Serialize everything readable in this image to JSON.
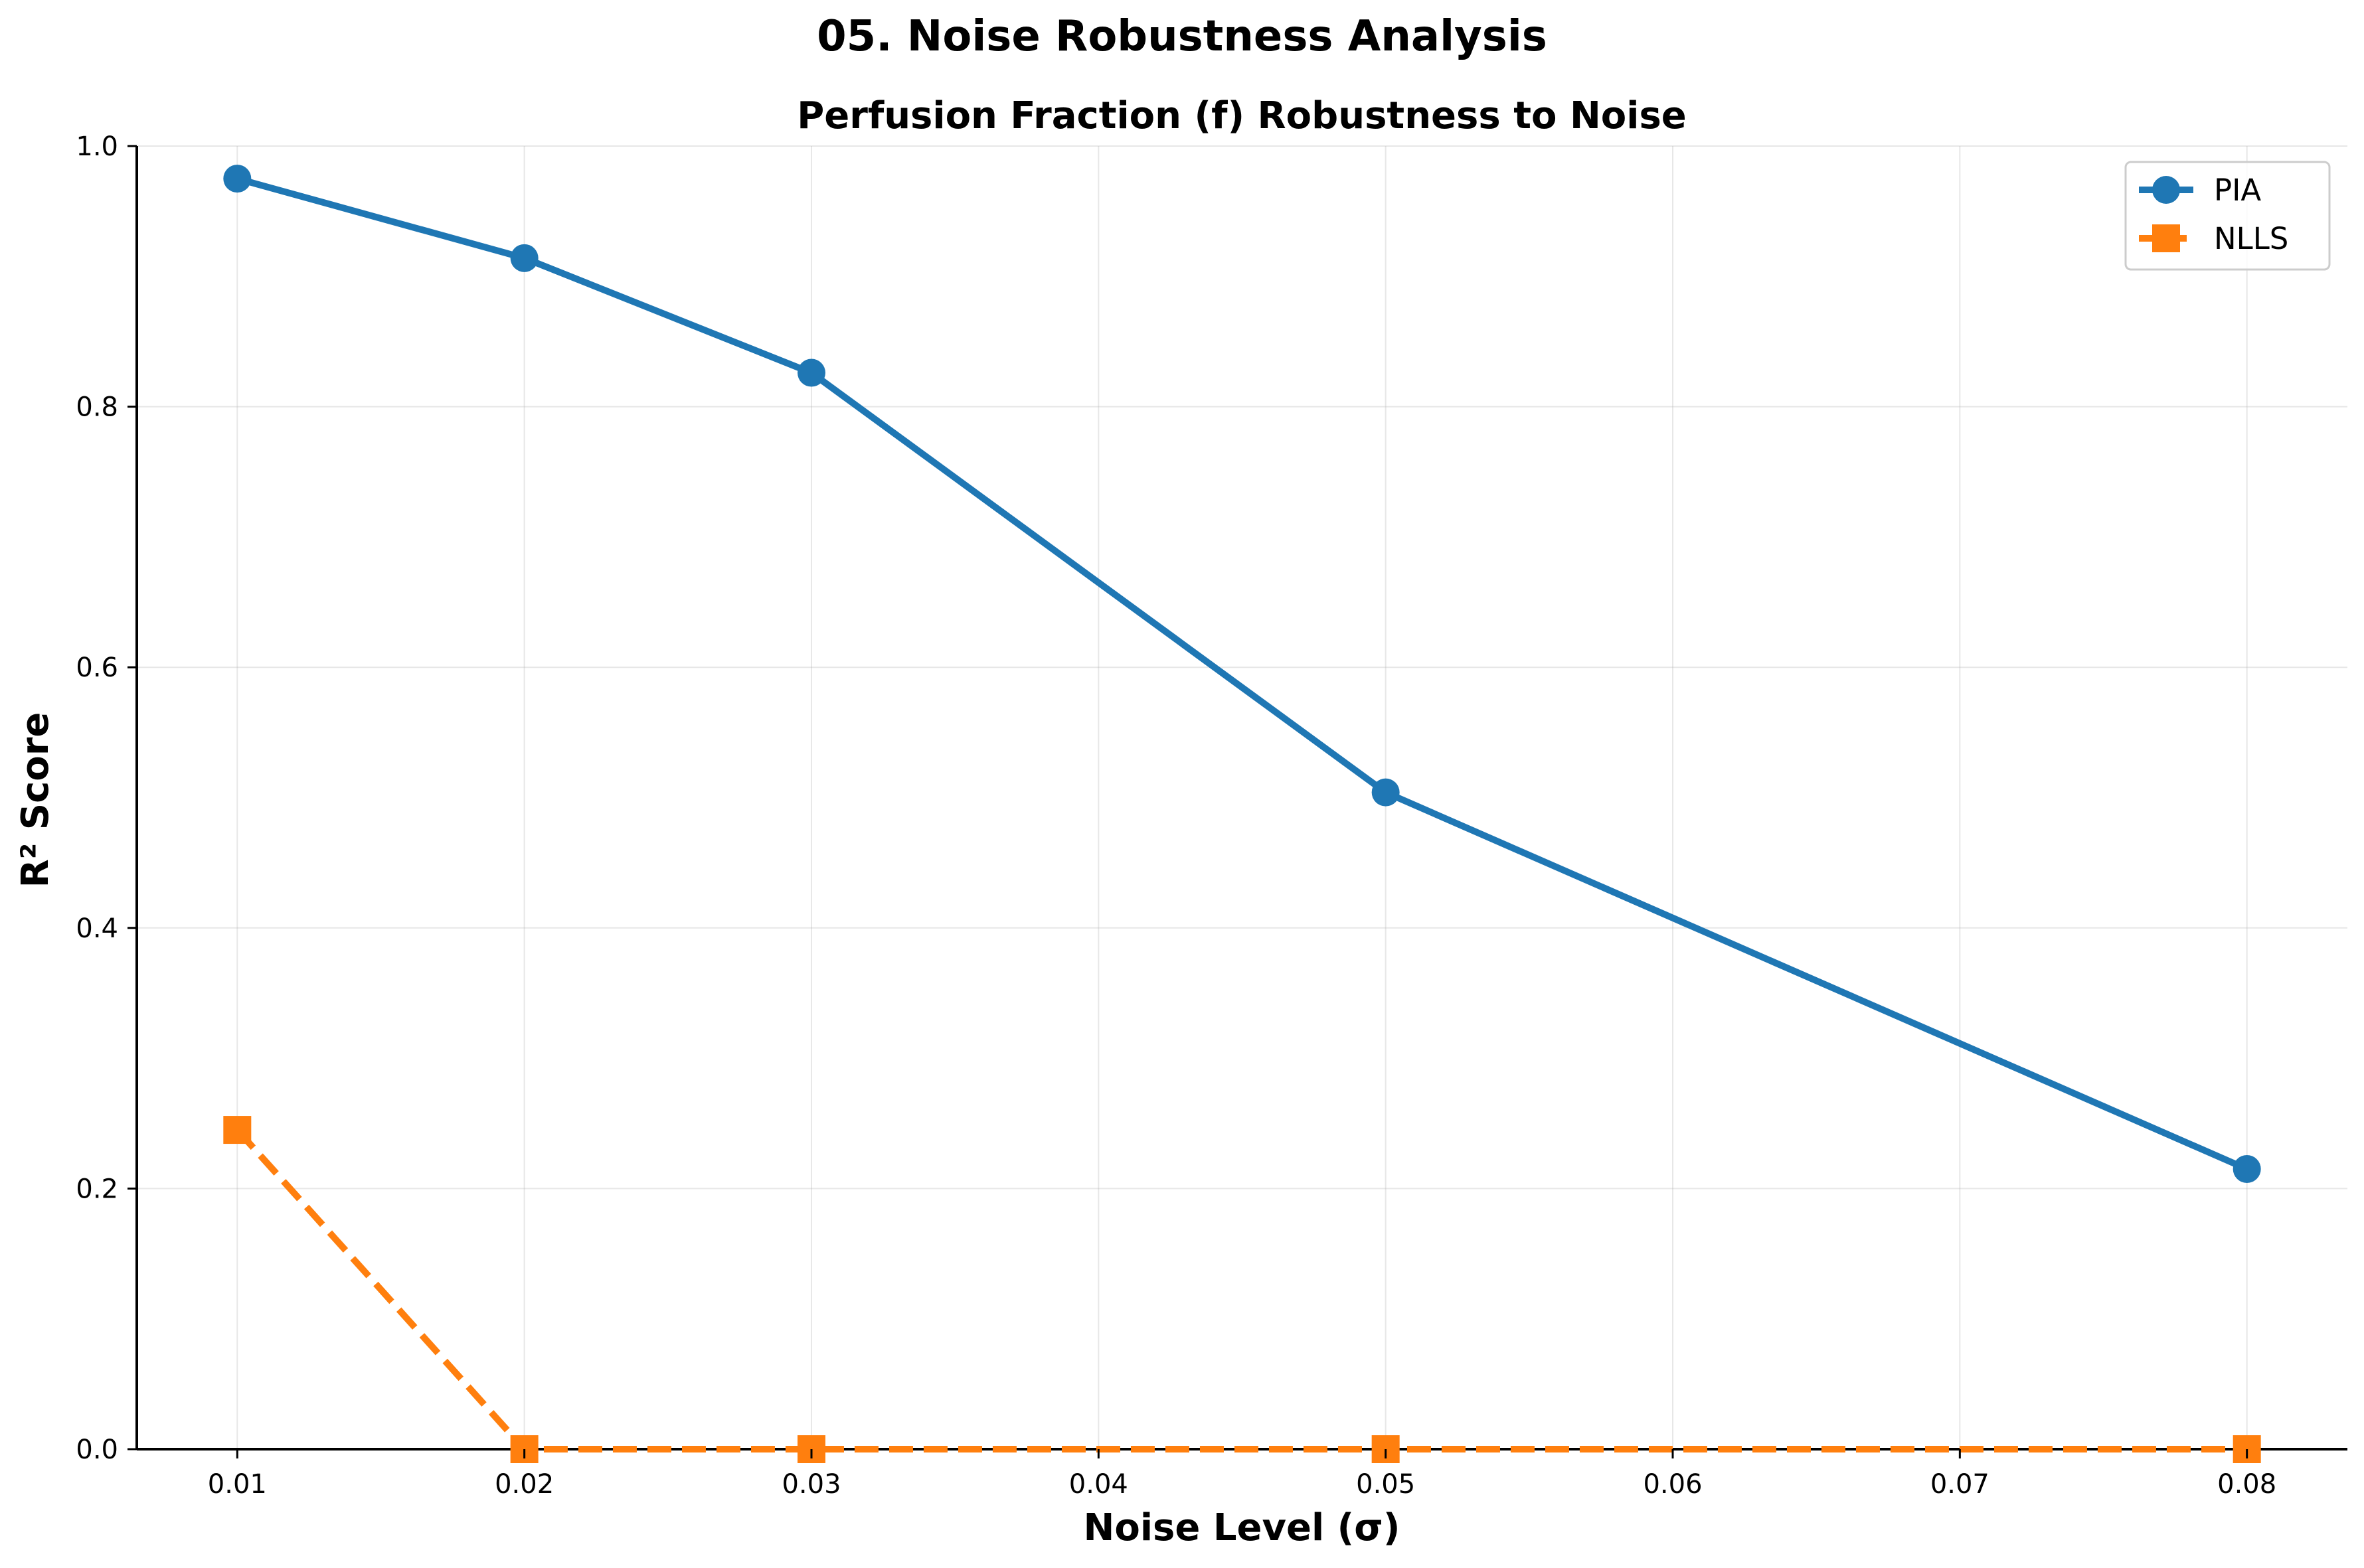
{
  "chart_data": {
    "type": "line",
    "suptitle": "05. Noise Robustness Analysis",
    "title": "Perfusion Fraction (f) Robustness to Noise",
    "xlabel": "Noise Level (σ)",
    "ylabel": "R² Score",
    "xlim": [
      0.0065,
      0.0835
    ],
    "ylim": [
      0.0,
      1.0
    ],
    "xticks": [
      "0.01",
      "0.02",
      "0.03",
      "0.04",
      "0.05",
      "0.06",
      "0.07",
      "0.08"
    ],
    "yticks": [
      "0.0",
      "0.2",
      "0.4",
      "0.6",
      "0.8",
      "1.0"
    ],
    "grid": true,
    "legend_position": "top-right",
    "series": [
      {
        "name": "PIA",
        "color": "#1f77b4",
        "marker": "circle",
        "line_style": "solid",
        "x": [
          0.01,
          0.02,
          0.03,
          0.05,
          0.08
        ],
        "y": [
          0.975,
          0.914,
          0.826,
          0.504,
          0.215
        ]
      },
      {
        "name": "NLLS",
        "color": "#ff7f0e",
        "marker": "square",
        "line_style": "dashed",
        "x": [
          0.01,
          0.02,
          0.03,
          0.05,
          0.08
        ],
        "y": [
          0.245,
          0.0,
          0.0,
          0.0,
          0.0
        ]
      }
    ]
  }
}
